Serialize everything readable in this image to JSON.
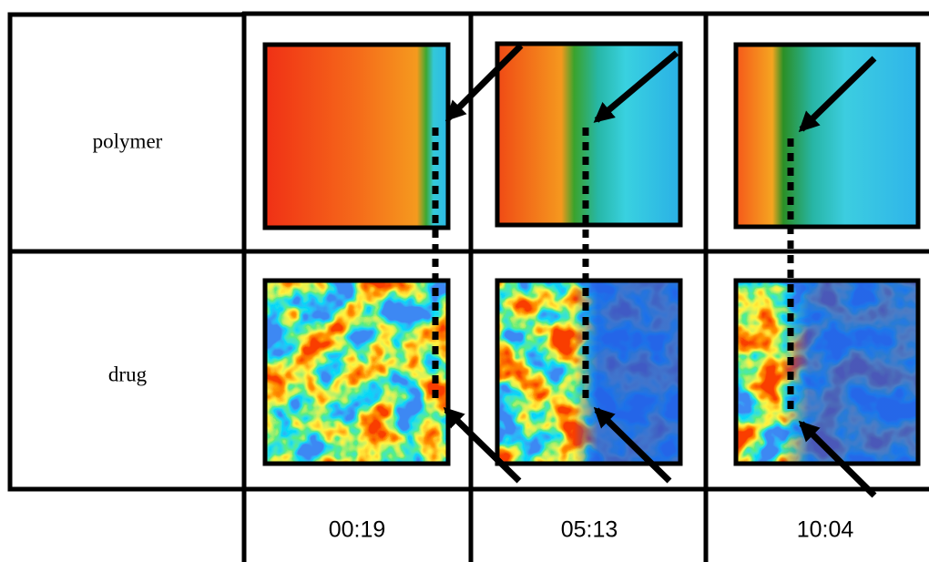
{
  "rows": [
    {
      "label": "polymer"
    },
    {
      "label": "drug"
    }
  ],
  "columns": [
    "00:19",
    "05:13",
    "10:04"
  ]
}
